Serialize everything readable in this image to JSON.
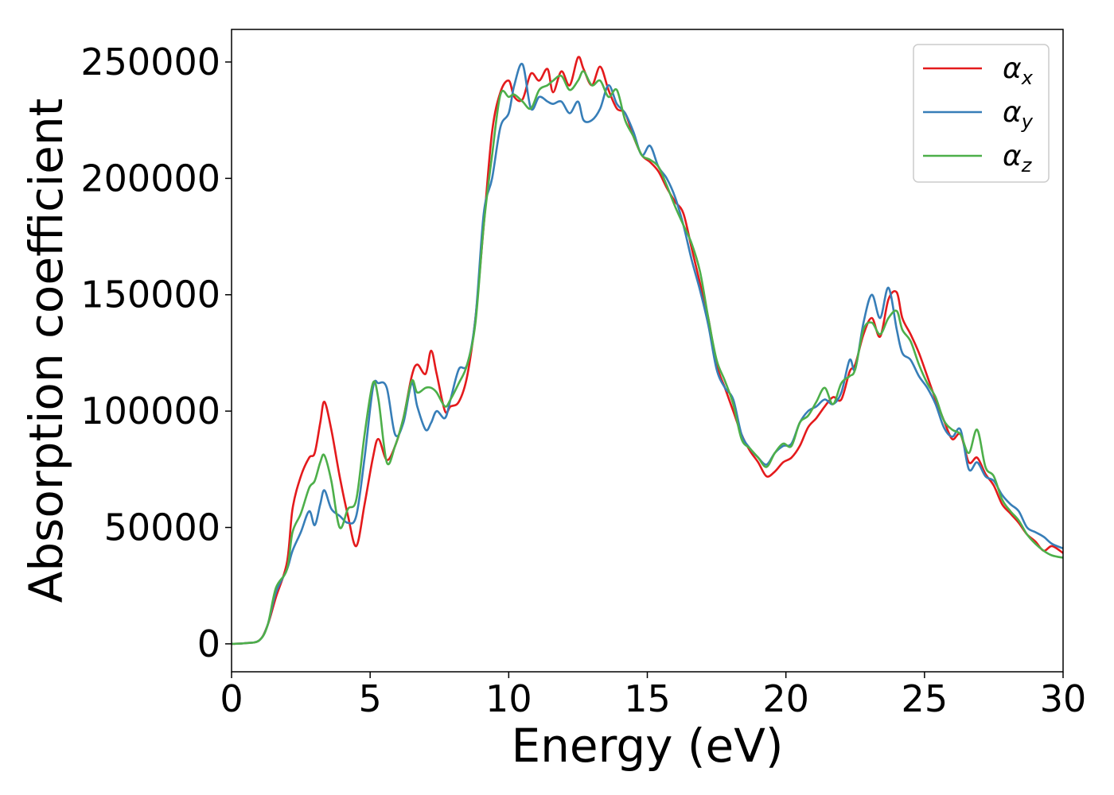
{
  "chart_data": {
    "type": "line",
    "title": "",
    "xlabel": "Energy (eV)",
    "ylabel": "Absorption coefficient",
    "xlim": [
      0,
      30
    ],
    "ylim": [
      -12000,
      264000
    ],
    "xticks": [
      0,
      5,
      10,
      15,
      20,
      25,
      30
    ],
    "xtick_labels": [
      "0",
      "5",
      "10",
      "15",
      "20",
      "25",
      "30"
    ],
    "yticks": [
      0,
      50000,
      100000,
      150000,
      200000,
      250000
    ],
    "ytick_labels": [
      "0",
      "50000",
      "100000",
      "150000",
      "200000",
      "250000"
    ],
    "grid": false,
    "legend_position": "top-right",
    "series": [
      {
        "name": "αx",
        "symbol": "α",
        "subscript": "x",
        "color": "#e41a1c",
        "x": [
          0,
          0.5,
          1.0,
          1.3,
          1.6,
          2.0,
          2.2,
          2.5,
          2.8,
          3.0,
          3.2,
          3.35,
          3.6,
          3.9,
          4.2,
          4.5,
          4.8,
          5.1,
          5.3,
          5.6,
          5.9,
          6.2,
          6.5,
          6.7,
          7.0,
          7.2,
          7.4,
          7.7,
          7.9,
          8.2,
          8.5,
          8.8,
          9.1,
          9.4,
          9.7,
          10.0,
          10.2,
          10.5,
          10.8,
          11.1,
          11.4,
          11.6,
          11.9,
          12.2,
          12.5,
          12.7,
          13.0,
          13.3,
          13.6,
          13.9,
          14.2,
          14.5,
          14.8,
          15.1,
          15.4,
          15.7,
          16.0,
          16.3,
          16.6,
          16.9,
          17.2,
          17.5,
          17.8,
          18.1,
          18.4,
          18.7,
          19.0,
          19.3,
          19.6,
          19.9,
          20.2,
          20.5,
          20.8,
          21.1,
          21.4,
          21.7,
          22.0,
          22.3,
          22.5,
          22.8,
          23.1,
          23.4,
          23.7,
          24.0,
          24.2,
          24.5,
          24.8,
          25.1,
          25.4,
          25.7,
          26.0,
          26.3,
          26.6,
          26.9,
          27.2,
          27.5,
          27.8,
          28.1,
          28.4,
          28.7,
          29.0,
          29.3,
          29.6,
          30.0
        ],
        "y": [
          0,
          300,
          1500,
          8000,
          20000,
          35000,
          58000,
          72000,
          80000,
          82000,
          95000,
          104000,
          92000,
          72000,
          55000,
          42000,
          60000,
          80000,
          88000,
          79000,
          85000,
          97000,
          115000,
          120000,
          116000,
          126000,
          116000,
          100000,
          102000,
          104000,
          115000,
          140000,
          180000,
          220000,
          237000,
          242000,
          235000,
          234000,
          245000,
          242000,
          247000,
          237000,
          246000,
          240000,
          252000,
          247000,
          240000,
          248000,
          238000,
          230000,
          228000,
          218000,
          210000,
          207000,
          203000,
          196000,
          190000,
          185000,
          170000,
          155000,
          140000,
          120000,
          110000,
          100000,
          90000,
          83000,
          78000,
          72000,
          74000,
          78000,
          80000,
          85000,
          93000,
          97000,
          102000,
          106000,
          105000,
          117000,
          120000,
          133000,
          140000,
          132000,
          148000,
          151000,
          140000,
          133000,
          125000,
          115000,
          105000,
          96000,
          88000,
          90000,
          78000,
          80000,
          73000,
          68000,
          60000,
          56000,
          52000,
          47000,
          44000,
          40000,
          42000,
          39000
        ]
      },
      {
        "name": "αy",
        "symbol": "α",
        "subscript": "y",
        "color": "#377eb8",
        "x": [
          0,
          0.5,
          1.0,
          1.3,
          1.6,
          2.0,
          2.2,
          2.5,
          2.8,
          3.0,
          3.2,
          3.35,
          3.6,
          3.9,
          4.2,
          4.5,
          4.8,
          5.1,
          5.3,
          5.6,
          5.9,
          6.2,
          6.5,
          6.7,
          7.0,
          7.2,
          7.4,
          7.7,
          7.9,
          8.2,
          8.5,
          8.8,
          9.1,
          9.4,
          9.7,
          10.0,
          10.2,
          10.5,
          10.8,
          11.1,
          11.4,
          11.6,
          11.9,
          12.2,
          12.5,
          12.7,
          13.0,
          13.3,
          13.6,
          13.9,
          14.2,
          14.5,
          14.8,
          15.1,
          15.4,
          15.7,
          16.0,
          16.3,
          16.6,
          16.9,
          17.2,
          17.5,
          17.8,
          18.1,
          18.4,
          18.7,
          19.0,
          19.3,
          19.6,
          19.9,
          20.2,
          20.5,
          20.8,
          21.1,
          21.4,
          21.7,
          22.0,
          22.3,
          22.5,
          22.8,
          23.1,
          23.4,
          23.7,
          24.0,
          24.2,
          24.5,
          24.8,
          25.1,
          25.4,
          25.7,
          26.0,
          26.3,
          26.6,
          26.9,
          27.2,
          27.5,
          27.8,
          28.1,
          28.4,
          28.7,
          29.0,
          29.3,
          29.6,
          30.0
        ],
        "y": [
          0,
          300,
          1500,
          8000,
          22000,
          32000,
          40000,
          48000,
          57000,
          51000,
          60000,
          66000,
          58000,
          55000,
          52000,
          55000,
          80000,
          110000,
          112000,
          110000,
          90000,
          95000,
          112000,
          102000,
          92000,
          95000,
          100000,
          97000,
          105000,
          118000,
          120000,
          140000,
          185000,
          200000,
          222000,
          228000,
          240000,
          249000,
          230000,
          235000,
          233000,
          232000,
          233000,
          228000,
          233000,
          225000,
          225000,
          230000,
          240000,
          232000,
          228000,
          220000,
          210000,
          214000,
          205000,
          200000,
          192000,
          180000,
          165000,
          152000,
          137000,
          118000,
          110000,
          105000,
          90000,
          84000,
          80000,
          77000,
          82000,
          85000,
          86000,
          95000,
          100000,
          102000,
          105000,
          103000,
          108000,
          122000,
          118000,
          138000,
          150000,
          140000,
          153000,
          135000,
          125000,
          122000,
          115000,
          110000,
          103000,
          93000,
          89000,
          92000,
          75000,
          78000,
          72000,
          70000,
          64000,
          60000,
          57000,
          50000,
          48000,
          46000,
          43000,
          41000
        ]
      },
      {
        "name": "αz",
        "symbol": "α",
        "subscript": "z",
        "color": "#4daf4a",
        "x": [
          0,
          0.5,
          1.0,
          1.3,
          1.6,
          2.0,
          2.2,
          2.5,
          2.8,
          3.0,
          3.2,
          3.35,
          3.6,
          3.9,
          4.2,
          4.5,
          4.8,
          5.1,
          5.3,
          5.6,
          5.9,
          6.2,
          6.5,
          6.7,
          7.0,
          7.2,
          7.4,
          7.7,
          7.9,
          8.2,
          8.5,
          8.8,
          9.1,
          9.4,
          9.7,
          10.0,
          10.2,
          10.5,
          10.8,
          11.1,
          11.4,
          11.6,
          11.9,
          12.2,
          12.5,
          12.7,
          13.0,
          13.3,
          13.6,
          13.9,
          14.2,
          14.5,
          14.8,
          15.1,
          15.4,
          15.7,
          16.0,
          16.3,
          16.6,
          16.9,
          17.2,
          17.5,
          17.8,
          18.1,
          18.4,
          18.7,
          19.0,
          19.3,
          19.6,
          19.9,
          20.2,
          20.5,
          20.8,
          21.1,
          21.4,
          21.7,
          22.0,
          22.3,
          22.5,
          22.8,
          23.1,
          23.4,
          23.7,
          24.0,
          24.2,
          24.5,
          24.8,
          25.1,
          25.4,
          25.7,
          26.0,
          26.3,
          26.6,
          26.9,
          27.2,
          27.5,
          27.8,
          28.1,
          28.4,
          28.7,
          29.0,
          29.3,
          29.6,
          30.0
        ],
        "y": [
          0,
          300,
          1500,
          8000,
          24000,
          32000,
          48000,
          56000,
          67000,
          70000,
          78000,
          81000,
          70000,
          50000,
          58000,
          62000,
          90000,
          112000,
          105000,
          78000,
          85000,
          97000,
          113000,
          108000,
          110000,
          110000,
          108000,
          102000,
          105000,
          112000,
          120000,
          138000,
          180000,
          210000,
          236000,
          235000,
          236000,
          233000,
          230000,
          238000,
          240000,
          242000,
          244000,
          238000,
          242000,
          246000,
          240000,
          242000,
          235000,
          238000,
          225000,
          218000,
          210000,
          208000,
          205000,
          197000,
          188000,
          180000,
          172000,
          160000,
          140000,
          122000,
          113000,
          103000,
          88000,
          84000,
          80000,
          76000,
          82000,
          86000,
          85000,
          95000,
          98000,
          104000,
          110000,
          103000,
          112000,
          115000,
          118000,
          135000,
          138000,
          133000,
          140000,
          143000,
          135000,
          130000,
          120000,
          112000,
          106000,
          96000,
          92000,
          90000,
          82000,
          92000,
          76000,
          72000,
          62000,
          57000,
          53000,
          47000,
          43000,
          40000,
          38000,
          37000
        ]
      }
    ]
  }
}
